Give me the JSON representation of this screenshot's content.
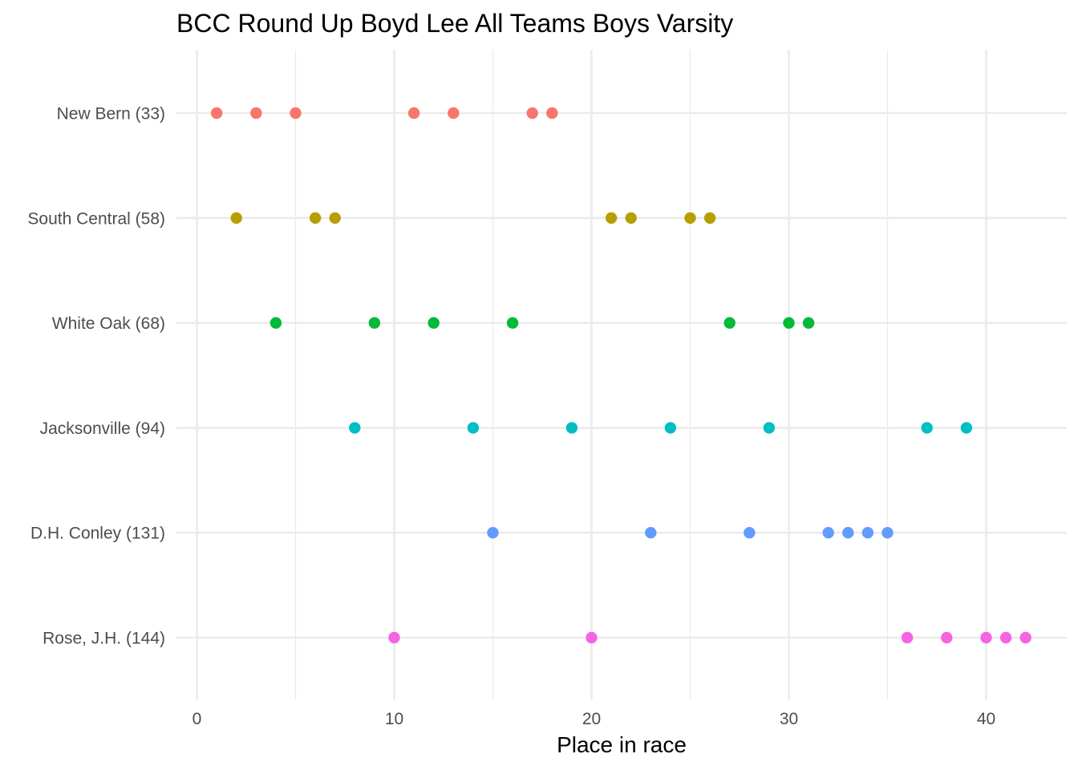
{
  "chart_data": {
    "type": "scatter",
    "title": "BCC Round Up Boyd Lee All Teams Boys Varsity",
    "xlabel": "Place in race",
    "ylabel": "",
    "xlim": [
      -1,
      44
    ],
    "x_ticks": [
      0,
      10,
      20,
      30,
      40
    ],
    "grid": true,
    "legend": "none",
    "categories": [
      "New Bern (33)",
      "South Central (58)",
      "White Oak (68)",
      "Jacksonville (94)",
      "D.H. Conley (131)",
      "Rose, J.H. (144)"
    ],
    "series": [
      {
        "category": "New Bern (33)",
        "color": "#F8766D",
        "x": [
          1,
          3,
          5,
          11,
          13,
          17,
          18
        ]
      },
      {
        "category": "South Central (58)",
        "color": "#B79F00",
        "x": [
          2,
          6,
          7,
          21,
          22,
          25,
          26
        ]
      },
      {
        "category": "White Oak (68)",
        "color": "#00BA38",
        "x": [
          4,
          9,
          12,
          16,
          27,
          30,
          31
        ]
      },
      {
        "category": "Jacksonville (94)",
        "color": "#00BFC4",
        "x": [
          8,
          14,
          19,
          24,
          29,
          37,
          39
        ]
      },
      {
        "category": "D.H. Conley (131)",
        "color": "#619CFF",
        "x": [
          15,
          23,
          28,
          32,
          33,
          34,
          35
        ]
      },
      {
        "category": "Rose, J.H. (144)",
        "color": "#F564E3",
        "x": [
          10,
          20,
          36,
          38,
          40,
          41,
          42
        ]
      }
    ]
  }
}
